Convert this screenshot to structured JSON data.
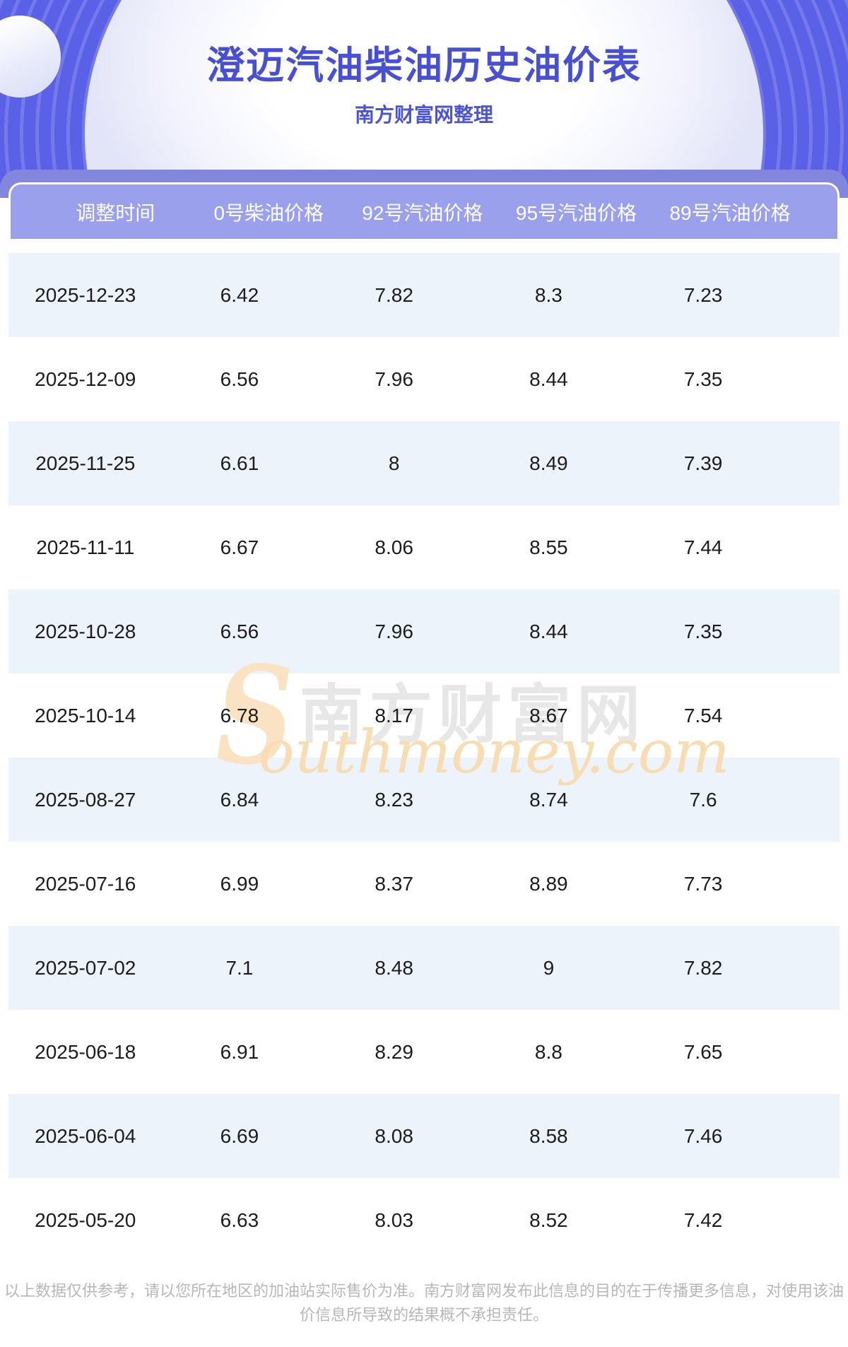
{
  "header": {
    "title": "澄迈汽油柴油历史油价表",
    "subtitle": "南方财富网整理"
  },
  "table": {
    "columns": [
      "调整时间",
      "0号柴油价格",
      "92号汽油价格",
      "95号汽油价格",
      "89号汽油价格"
    ],
    "rows": [
      [
        "2025-12-23",
        "6.42",
        "7.82",
        "8.3",
        "7.23"
      ],
      [
        "2025-12-09",
        "6.56",
        "7.96",
        "8.44",
        "7.35"
      ],
      [
        "2025-11-25",
        "6.61",
        "8",
        "8.49",
        "7.39"
      ],
      [
        "2025-11-11",
        "6.67",
        "8.06",
        "8.55",
        "7.44"
      ],
      [
        "2025-10-28",
        "6.56",
        "7.96",
        "8.44",
        "7.35"
      ],
      [
        "2025-10-14",
        "6.78",
        "8.17",
        "8.67",
        "7.54"
      ],
      [
        "2025-08-27",
        "6.84",
        "8.23",
        "8.74",
        "7.6"
      ],
      [
        "2025-07-16",
        "6.99",
        "8.37",
        "8.89",
        "7.73"
      ],
      [
        "2025-07-02",
        "7.1",
        "8.48",
        "9",
        "7.82"
      ],
      [
        "2025-06-18",
        "6.91",
        "8.29",
        "8.8",
        "7.65"
      ],
      [
        "2025-06-04",
        "6.69",
        "8.08",
        "8.58",
        "7.46"
      ],
      [
        "2025-05-20",
        "6.63",
        "8.03",
        "8.52",
        "7.42"
      ]
    ]
  },
  "watermark": {
    "s_glyph": "S",
    "cn": "南方财富网",
    "en": "outhmoney.com"
  },
  "footer": {
    "disclaimer": "以上数据仅供参考，请以您所在地区的加油站实际售价为准。南方财富网发布此信息的目的在于传播更多信息，对使用该油价信息所导致的结果概不承担责任。"
  },
  "colors": {
    "hero_background": "#5a61e6",
    "hero_backbar": "#8287dd",
    "table_header_bg": "#9aa0ec",
    "row_alt_bg": "#edf3fb",
    "title_text": "#4750d5",
    "body_text": "#1c1c1c",
    "footer_text": "#b7b7b7",
    "watermark_orange": "#f8ddb2",
    "watermark_gray": "#e7e7e7"
  }
}
